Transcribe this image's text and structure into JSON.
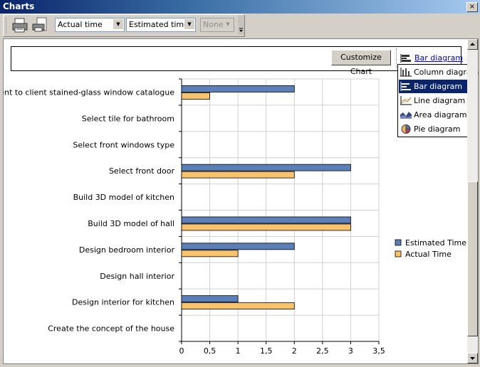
{
  "window": {
    "title": "Charts",
    "close_glyph": "×"
  },
  "toolbar": {
    "combo1": "Actual time",
    "combo2": "Estimated time",
    "combo3": "None"
  },
  "panel": {
    "customize_label": "Customize Chart",
    "diagram_type_label": "Bar diagram"
  },
  "dropdown": {
    "items": [
      {
        "label": "Column diagram",
        "icon": "column-chart-icon",
        "selected": false
      },
      {
        "label": "Bar diagram",
        "icon": "bar-chart-icon",
        "selected": true
      },
      {
        "label": "Line diagram",
        "icon": "line-chart-icon",
        "selected": false
      },
      {
        "label": "Area diagram",
        "icon": "area-chart-icon",
        "selected": false
      },
      {
        "label": "Pie diagram",
        "icon": "pie-chart-icon",
        "selected": false
      }
    ]
  },
  "chart_data": {
    "type": "bar",
    "orientation": "horizontal",
    "categories": [
      "Present to client stained-glass window catalogue",
      "Select tile for bathroom",
      "Select front windows type",
      "Select front door",
      "Build 3D model of kitchen",
      "Build 3D model of hall",
      "Design bedroom interior",
      "Design hall interior",
      "Design interior for kitchen",
      "Create the concept of the house"
    ],
    "series": [
      {
        "name": "Estimated Time",
        "color": "#5b7fb6",
        "values": [
          2,
          0,
          0,
          3,
          0,
          3,
          2,
          0,
          1,
          0
        ]
      },
      {
        "name": "Actual Time",
        "color": "#f9c26f",
        "values": [
          0.5,
          0,
          0,
          2,
          0,
          3,
          1,
          0,
          2,
          0
        ]
      }
    ],
    "xlim": [
      0,
      3.5
    ],
    "xticks": [
      "0",
      "0,5",
      "1",
      "1,5",
      "2",
      "2,5",
      "3",
      "3,5"
    ],
    "grid": true,
    "legend_position": "right"
  }
}
